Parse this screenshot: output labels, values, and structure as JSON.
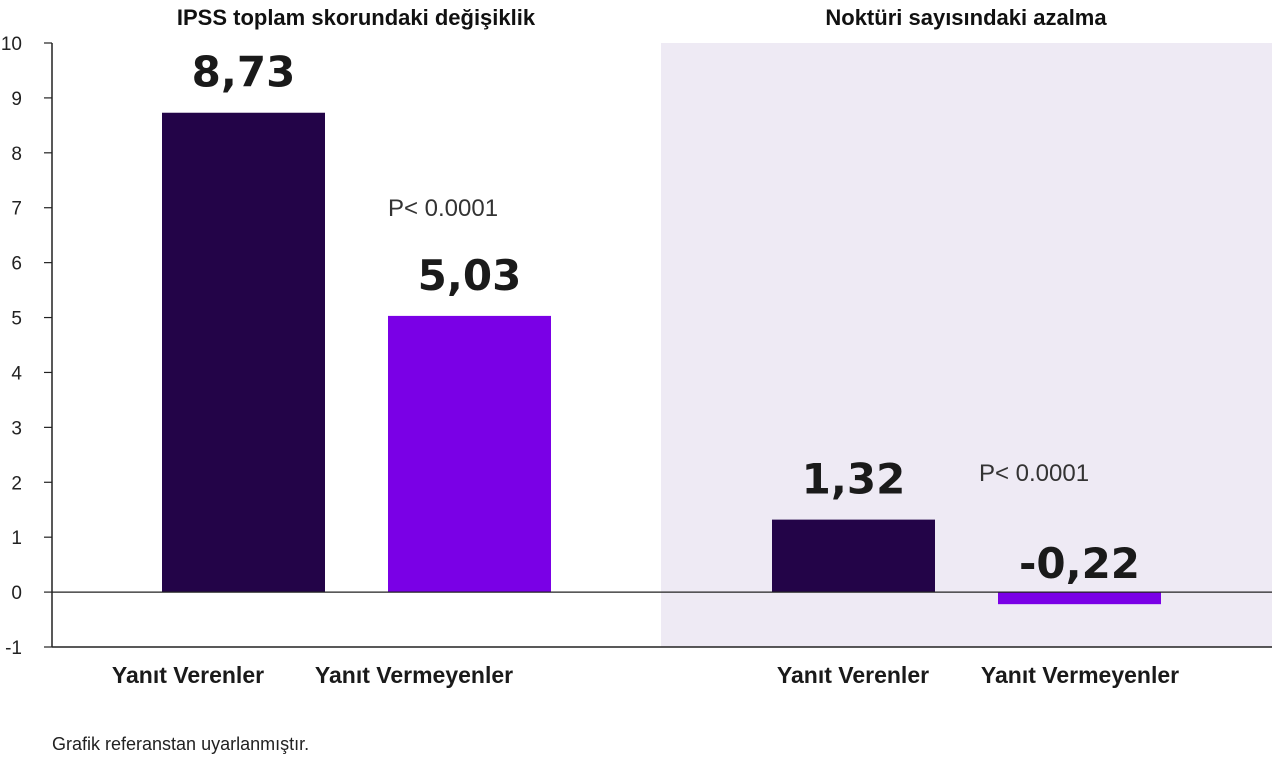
{
  "chart_data": {
    "type": "bar",
    "ylim": [
      -1,
      10
    ],
    "yticks": [
      "10",
      "9",
      "8",
      "7",
      "6",
      "5",
      "4",
      "3",
      "2",
      "1",
      "0",
      "-1"
    ],
    "colors": {
      "responders": "#230448",
      "non_responders": "#7a00e6",
      "panel_bg": "#eeeaf4",
      "axis": "#222222"
    },
    "panels": [
      {
        "title": "IPSS toplam skorundaki değişiklik",
        "shaded": false,
        "p_value": "P< 0.0001",
        "categories": [
          "Yanıt Verenler",
          "Yanıt Vermeyenler"
        ],
        "values": [
          8.73,
          5.03
        ],
        "value_labels": [
          "8,73",
          "5,03"
        ]
      },
      {
        "title": "Noktüri sayısındaki azalma",
        "shaded": true,
        "p_value": "P< 0.0001",
        "categories": [
          "Yanıt Verenler",
          "Yanıt Vermeyenler"
        ],
        "values": [
          1.32,
          -0.22
        ],
        "value_labels": [
          "1,32",
          "-0,22"
        ]
      }
    ]
  },
  "footnote": "Grafik referanstan uyarlanmıştır."
}
